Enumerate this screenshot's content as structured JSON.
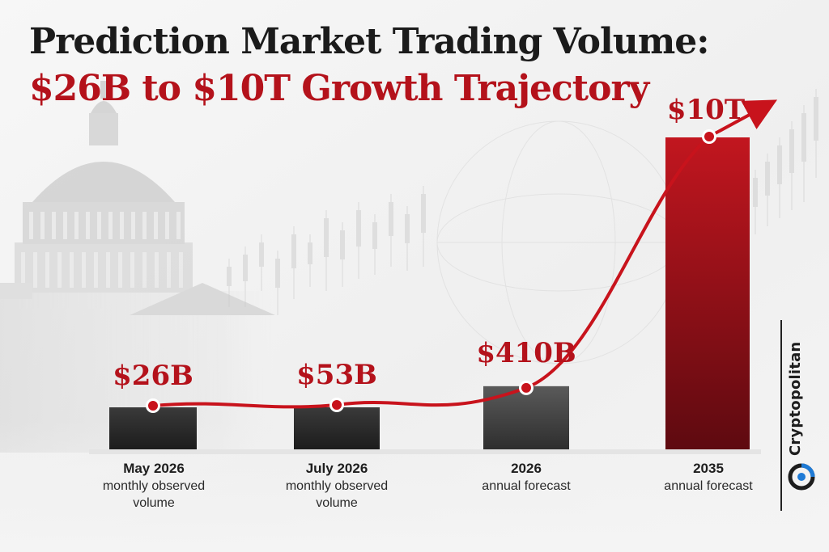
{
  "header": {
    "title_line1": "Prediction Market Trading Volume:",
    "title_line2": "$26B to $10T Growth Trajectory"
  },
  "brand": {
    "name": "Cryptopolitan",
    "logo_icon": "cryptopolitan-logo-icon"
  },
  "colors": {
    "title_dark": "#1b1b1b",
    "accent_red": "#b4121b",
    "bar_dark": "#2c2c2c",
    "bar_gray": "#4a4a4a",
    "bar_red": "#a3101a",
    "brand_blue": "#1f7bd6"
  },
  "chart_data": {
    "type": "bar",
    "title": "Prediction Market Trading Volume:",
    "subtitle": "$26B to $10T Growth Trajectory",
    "categories": [
      {
        "main": "May 2026",
        "sub": "monthly observed volume"
      },
      {
        "main": "July 2026",
        "sub": "monthly observed volume"
      },
      {
        "main": "2026",
        "sub": "annual forecast"
      },
      {
        "main": "2035",
        "sub": "annual forecast"
      }
    ],
    "series": [
      {
        "values": [
          26,
          53,
          410,
          10000
        ],
        "unit": "billion USD"
      }
    ],
    "value_labels": [
      "$26B",
      "$53B",
      "$410B",
      "$10T"
    ],
    "trend_line": "red arrow connecting values",
    "xlabel": "",
    "ylabel": "",
    "grid": false,
    "legend": "none"
  }
}
